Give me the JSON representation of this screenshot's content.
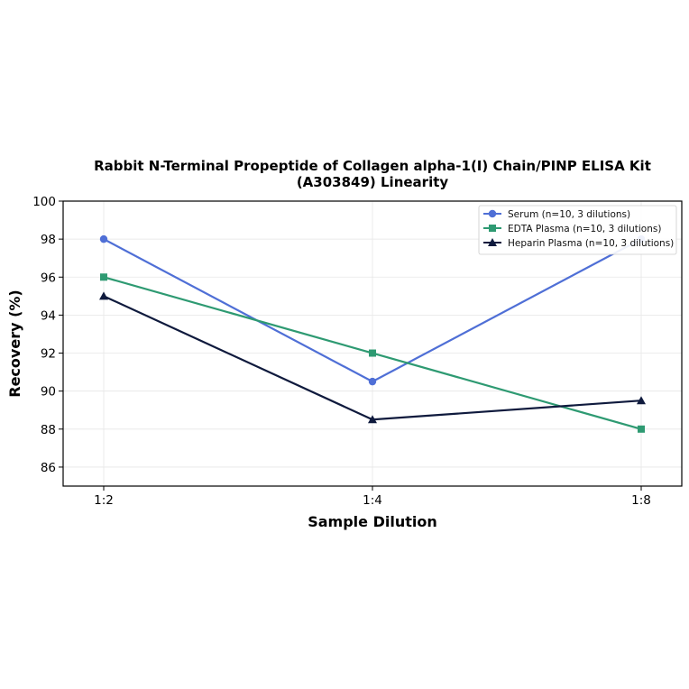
{
  "chart_data": {
    "type": "line",
    "title_lines": [
      "Rabbit N-Terminal Propeptide of Collagen alpha-1(I) Chain/PINP ELISA Kit",
      "(A303849) Linearity"
    ],
    "xlabel": "Sample Dilution",
    "ylabel": "Recovery (%)",
    "categories": [
      "1:2",
      "1:4",
      "1:8"
    ],
    "ylim": [
      85,
      100
    ],
    "yticks": [
      86,
      88,
      90,
      92,
      94,
      96,
      98,
      100
    ],
    "grid": true,
    "legend_position": "top-right",
    "series": [
      {
        "name": "Serum (n=10, 3 dilutions)",
        "values": [
          98,
          90.5,
          98
        ],
        "color": "#4f6fd6",
        "marker": "circle"
      },
      {
        "name": "EDTA Plasma (n=10, 3 dilutions)",
        "values": [
          96,
          92,
          88
        ],
        "color": "#2e9a72",
        "marker": "square"
      },
      {
        "name": "Heparin Plasma (n=10, 3 dilutions)",
        "values": [
          95,
          88.5,
          89.5
        ],
        "color": "#0f1a3d",
        "marker": "triangle"
      }
    ]
  }
}
